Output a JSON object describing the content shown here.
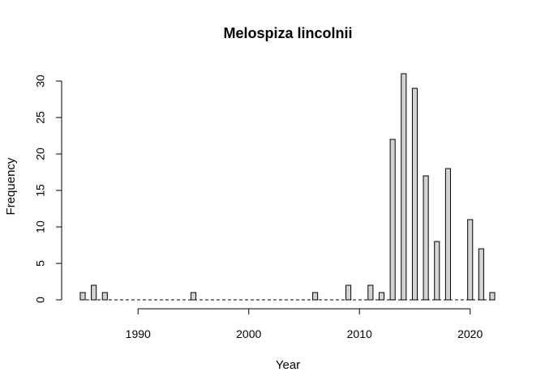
{
  "chart_data": {
    "type": "bar",
    "title": "Melospiza lincolnii",
    "xlabel": "Year",
    "ylabel": "Frequency",
    "x": [
      1985,
      1986,
      1987,
      1995,
      2006,
      2009,
      2011,
      2012,
      2013,
      2014,
      2015,
      2016,
      2017,
      2018,
      2020,
      2021,
      2022
    ],
    "values": [
      1,
      2,
      1,
      1,
      1,
      2,
      2,
      1,
      22,
      31,
      29,
      17,
      8,
      18,
      11,
      7,
      1
    ],
    "x_ticks": [
      1990,
      2000,
      2010,
      2020
    ],
    "x_tick_labels": [
      "1990",
      "2000",
      "2010",
      "2020"
    ],
    "y_ticks": [
      0,
      5,
      10,
      15,
      20,
      25,
      30
    ],
    "y_tick_labels": [
      "0",
      "5",
      "10",
      "15",
      "20",
      "25",
      "30"
    ],
    "xlim": [
      1985,
      2022
    ],
    "ylim": [
      0,
      31
    ],
    "grid": false,
    "colors": {
      "bar_fill": "#d3d3d3",
      "bar_stroke": "#000000"
    }
  }
}
